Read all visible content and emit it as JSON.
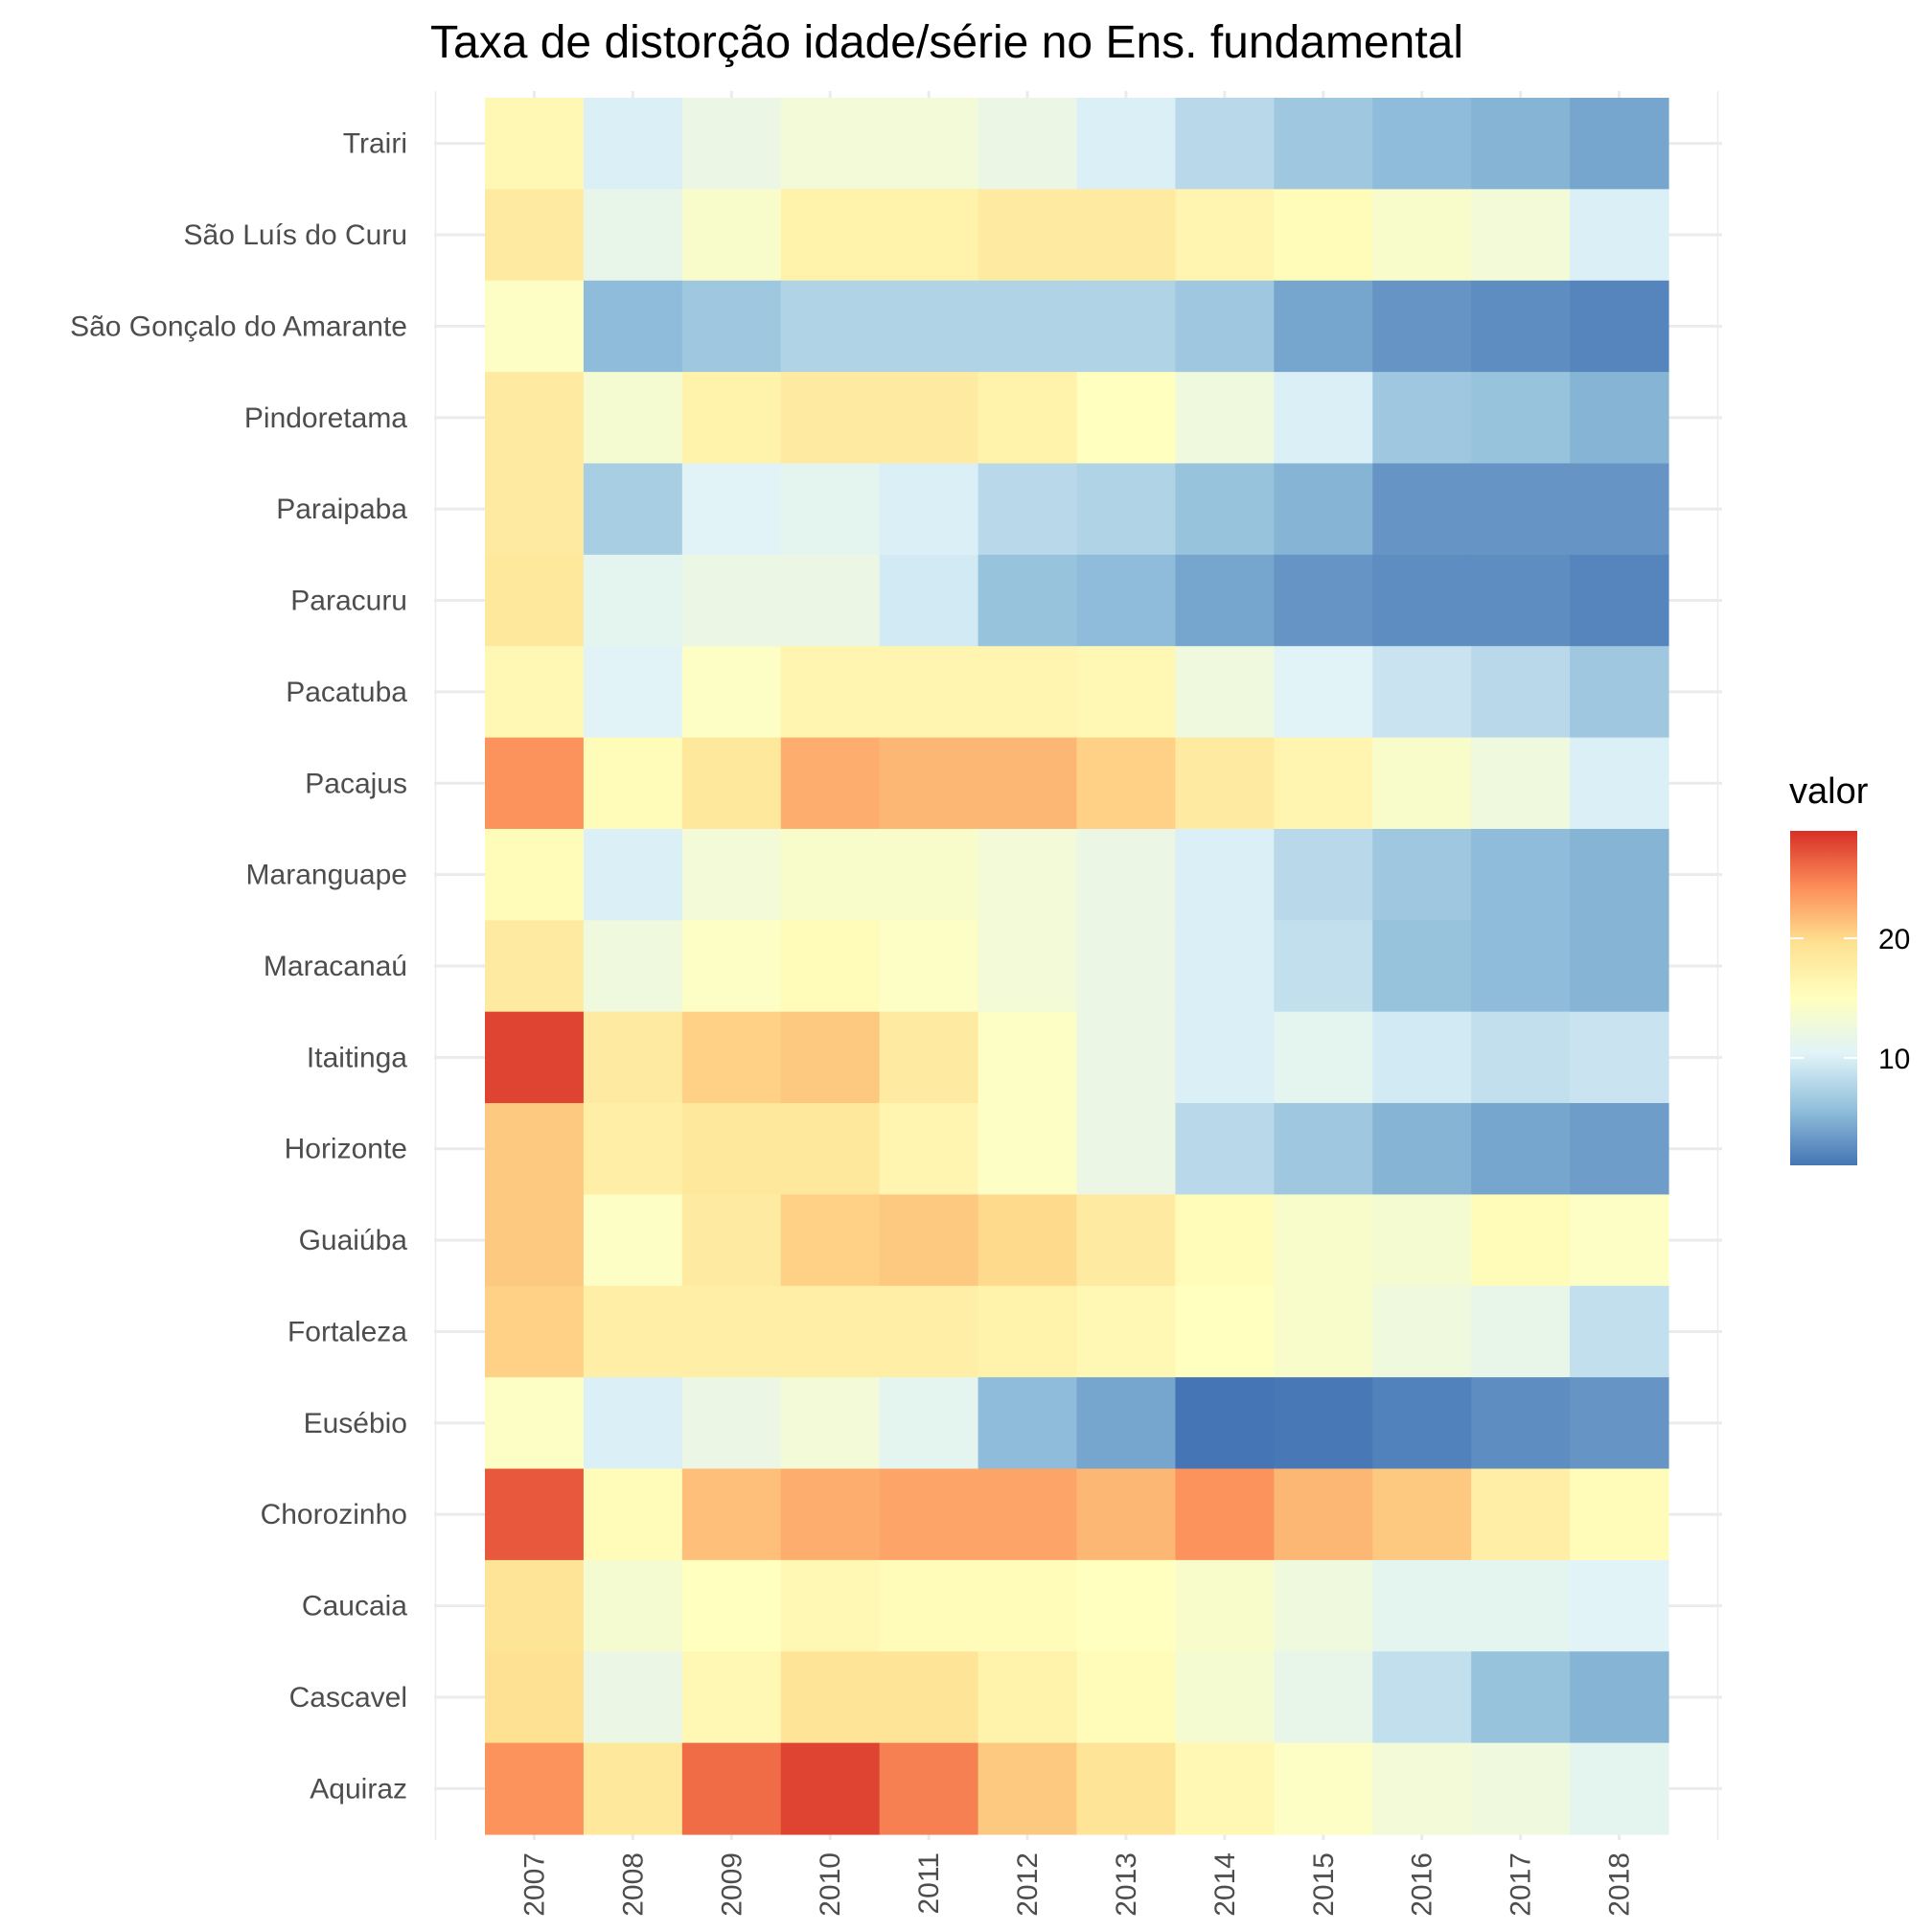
{
  "chart_data": {
    "type": "heatmap",
    "title": "Taxa de distorção idade/série no Ens. fundamental",
    "xlabel": "",
    "ylabel": "",
    "x": [
      "2007",
      "2008",
      "2009",
      "2010",
      "2011",
      "2012",
      "2013",
      "2014",
      "2015",
      "2016",
      "2017",
      "2018"
    ],
    "y": [
      "Trairi",
      "São Luís do Curu",
      "São Gonçalo do Amarante",
      "Pindoretama",
      "Paraipaba",
      "Paracuru",
      "Pacatuba",
      "Pacajus",
      "Maranguape",
      "Maracanaú",
      "Itaitinga",
      "Horizonte",
      "Guaiúba",
      "Fortaleza",
      "Eusébio",
      "Chorozinho",
      "Caucaia",
      "Cascavel",
      "Aquiraz"
    ],
    "values": [
      [
        16,
        10,
        12,
        13,
        13,
        12,
        10,
        8,
        6.5,
        5.5,
        5,
        4
      ],
      [
        18,
        11.5,
        14,
        17,
        17,
        18,
        18,
        16.5,
        15.5,
        14,
        13,
        10
      ],
      [
        14.5,
        5.5,
        6.5,
        7.5,
        7.5,
        7.5,
        7.5,
        6.5,
        4,
        3,
        2.5,
        2
      ],
      [
        18,
        13.5,
        17,
        18,
        18,
        17,
        15,
        12.5,
        10,
        6.5,
        6,
        5
      ],
      [
        18,
        7,
        10.5,
        11,
        10,
        8,
        7.5,
        6,
        5,
        3,
        3,
        3
      ],
      [
        18.5,
        11,
        12,
        12,
        9.5,
        6,
        5.5,
        4,
        3,
        2.5,
        2.5,
        2
      ],
      [
        16,
        10.5,
        14.5,
        16.5,
        16.5,
        16.5,
        16,
        12.5,
        10.5,
        9,
        8,
        6.5
      ],
      [
        24,
        15.5,
        18.5,
        22.5,
        22,
        22,
        20.5,
        18,
        16.5,
        14,
        12.5,
        10
      ],
      [
        15.5,
        10,
        13,
        14,
        14,
        13,
        12,
        10,
        8,
        6.5,
        5.5,
        5
      ],
      [
        18,
        12.5,
        14.5,
        15.5,
        14.5,
        13,
        12,
        10,
        8.5,
        6,
        5.5,
        5
      ],
      [
        28,
        18,
        20.5,
        21,
        18,
        14.5,
        12,
        10,
        11,
        9.5,
        8.5,
        9
      ],
      [
        21,
        17.5,
        18.5,
        18.5,
        16.5,
        14.5,
        12,
        8,
        6.5,
        5,
        4,
        3.5
      ],
      [
        21,
        14.5,
        18,
        20.5,
        21,
        20,
        18,
        15.5,
        14,
        13.5,
        15.5,
        14.5
      ],
      [
        20.5,
        17.5,
        17.5,
        17.5,
        17.5,
        17,
        16,
        15,
        14,
        12.5,
        11.5,
        8.5
      ],
      [
        14.5,
        10,
        12,
        13,
        11,
        5.5,
        4,
        1,
        1.2,
        1.8,
        2.5,
        3
      ],
      [
        27,
        15.5,
        21.5,
        22.5,
        23,
        23,
        22,
        24,
        22,
        21,
        17.5,
        15.5
      ],
      [
        19,
        13.5,
        15,
        16,
        15.5,
        15.5,
        15,
        14,
        12.5,
        11,
        11,
        10.5
      ],
      [
        19.5,
        12,
        16,
        19,
        19,
        17,
        15.5,
        13.5,
        11.5,
        8.5,
        6,
        5
      ],
      [
        24,
        18.5,
        26,
        28,
        25,
        21,
        19,
        16,
        14.5,
        13,
        12.5,
        11
      ]
    ],
    "colorbar": {
      "title": "valor",
      "min": 1,
      "max": 29,
      "ticks": [
        10,
        20
      ],
      "colors": [
        "#4575b4",
        "#91bfdb",
        "#e0f3f8",
        "#ffffbf",
        "#fee090",
        "#fc8d59",
        "#d73027"
      ]
    },
    "grid": true,
    "legend_position": "right"
  }
}
